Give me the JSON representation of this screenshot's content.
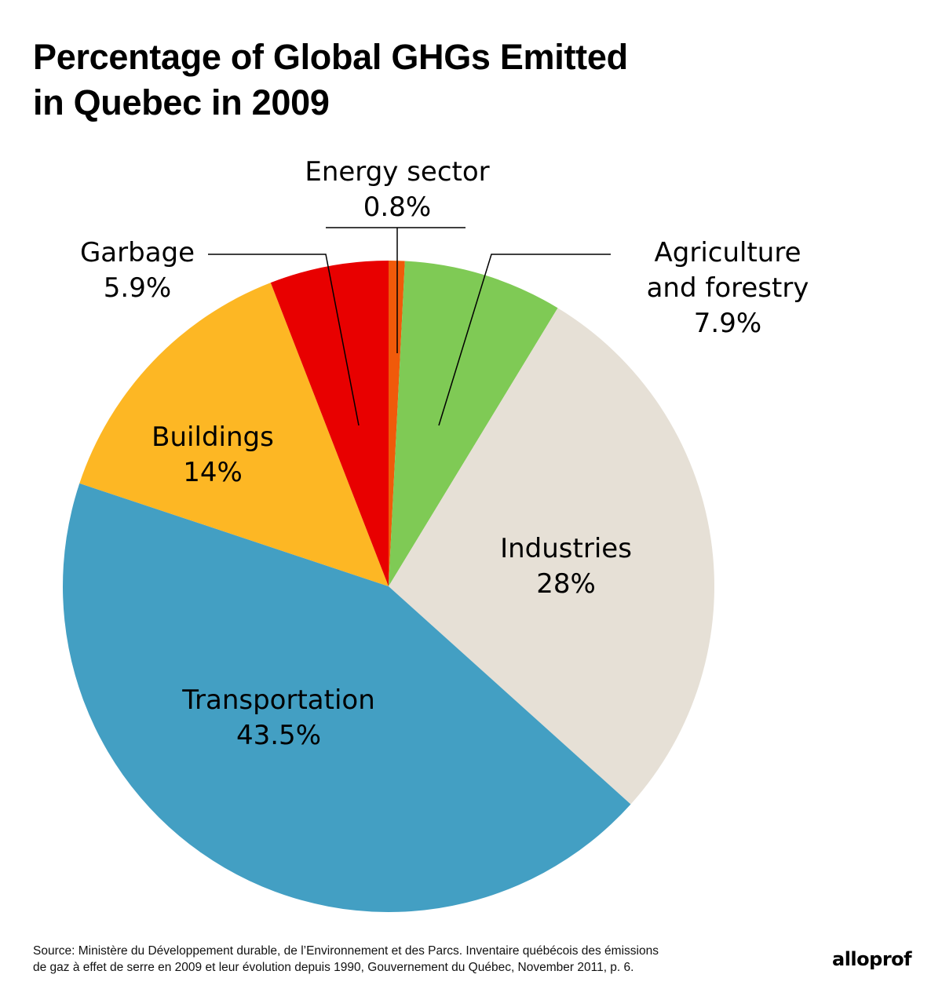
{
  "header": {
    "title_line1": "Percentage of Global GHGs Emitted",
    "title_line2": "in Quebec in 2009"
  },
  "chart_data": {
    "type": "pie",
    "title": "Percentage of Global GHGs Emitted in Quebec in 2009",
    "slices": [
      {
        "label": "Energy sector",
        "value": 0.8,
        "value_label": "0.8%",
        "color": "#F05A0A"
      },
      {
        "label": "Agriculture and forestry",
        "label_lines": [
          "Agriculture",
          "and forestry"
        ],
        "value": 7.9,
        "value_label": "7.9%",
        "color": "#7FCA55"
      },
      {
        "label": "Industries",
        "value": 28,
        "value_label": "28%",
        "color": "#E6E0D6"
      },
      {
        "label": "Transportation",
        "value": 43.5,
        "value_label": "43.5%",
        "color": "#439FC3"
      },
      {
        "label": "Buildings",
        "value": 14,
        "value_label": "14%",
        "color": "#FDB724"
      },
      {
        "label": "Garbage",
        "value": 5.9,
        "value_label": "5.9%",
        "color": "#E80000"
      }
    ]
  },
  "footer": {
    "source_line1": "Source: Ministère du Développement durable, de l’Environnement et des Parcs. Inventaire québécois des émissions",
    "source_line2": "de gaz à effet de serre en 2009 et leur évolution depuis 1990, Gouvernement du Québec, November 2011, p. 6.",
    "logo": "alloprof"
  }
}
